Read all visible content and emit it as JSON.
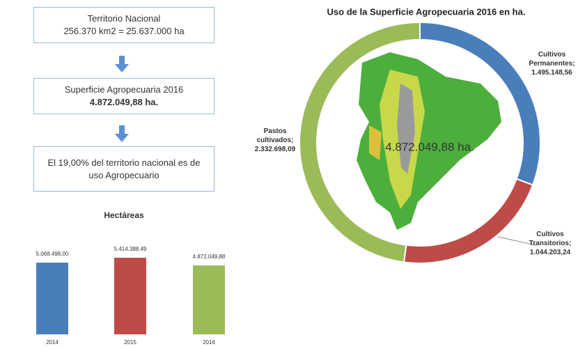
{
  "flow": {
    "boxes": [
      {
        "lines": [
          "Territorio Nacional",
          "256.370 km2 = 25.637.000 ha"
        ]
      },
      {
        "lines": [
          "Superficie Agropecuaria 2016",
          "4.872.049,88 ha."
        ]
      },
      {
        "lines": [
          "El 19,00% del territorio nacional es de uso Agropecuario"
        ]
      }
    ]
  },
  "chart_data": [
    {
      "type": "bar",
      "title": "Hectáreas",
      "categories": [
        "2014",
        "2015",
        "2016"
      ],
      "values": [
        5068498,
        5414388.49,
        4872049.88
      ],
      "value_labels": [
        "5.068.498,00",
        "5.414.388,49",
        "4.872.049,88"
      ],
      "colors": [
        "#4a7ebb",
        "#be4b48",
        "#9bbb59"
      ]
    },
    {
      "type": "pie",
      "donut": true,
      "title": "Uso de la Superficie Agropecuaria 2016 en ha.",
      "categories": [
        "Cultivos Permanentes;",
        "Cultivos Transitorios;",
        "Pastos cultivados;"
      ],
      "values": [
        1495148.56,
        1044203.24,
        2332698.09
      ],
      "value_labels": [
        "1.495.148,56",
        "1.044.203,24",
        "2.332.698,09"
      ],
      "colors": [
        "#4a7ebb",
        "#be4b48",
        "#9bbb59"
      ],
      "center_label": "4.872.049,88 ha."
    }
  ]
}
